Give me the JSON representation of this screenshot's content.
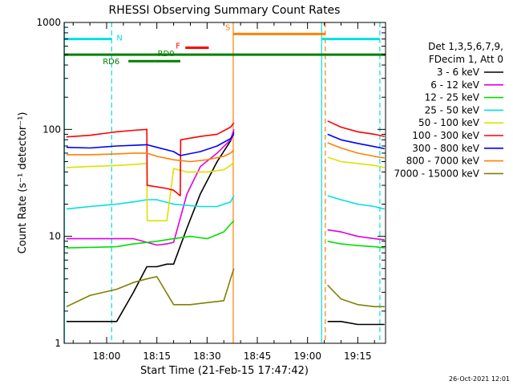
{
  "chart_data": {
    "type": "line",
    "title": "RHESSI Observing Summary Count Rates",
    "xlabel": "Start Time (21-Feb-15 17:47:42)",
    "ylabel": "Count Rate (s⁻¹ detector⁻¹)",
    "yscale": "log",
    "ylim": [
      1,
      1000
    ],
    "xlim_minutes": [
      -12.7,
      83.3
    ],
    "x_ticks": [
      {
        "label": "18:00",
        "min": 0
      },
      {
        "label": "18:15",
        "min": 15
      },
      {
        "label": "18:30",
        "min": 30
      },
      {
        "label": "18:45",
        "min": 45
      },
      {
        "label": "19:00",
        "min": 60
      },
      {
        "label": "19:15",
        "min": 75
      }
    ],
    "y_ticks": [
      {
        "label": "1",
        "value": 1
      },
      {
        "label": "10",
        "value": 10
      },
      {
        "label": "100",
        "value": 100
      },
      {
        "label": "1000",
        "value": 1000
      }
    ],
    "legend_title": [
      "Det 1,3,5,6,7,9,",
      "FDecim 1, Att 0"
    ],
    "legend_position": "right",
    "series": [
      {
        "name": "3 - 6 keV",
        "color": "#000000",
        "x": [
          -12,
          -5,
          3,
          8,
          12,
          15,
          18,
          20,
          24,
          28,
          33,
          37,
          38,
          63,
          66,
          70,
          75,
          80,
          83
        ],
        "y": [
          1.6,
          1.6,
          1.6,
          3.0,
          5.2,
          5.2,
          5.5,
          5.5,
          12,
          25,
          50,
          78,
          95,
          0,
          1.6,
          1.6,
          1.5,
          1.5,
          1.5
        ]
      },
      {
        "name": "6 - 12 keV",
        "color": "#e000e0",
        "x": [
          -12,
          3,
          8,
          15,
          18,
          20,
          24,
          28,
          33,
          37,
          38,
          63,
          66,
          70,
          75,
          80,
          83
        ],
        "y": [
          9.5,
          9.5,
          9.5,
          8.3,
          8.5,
          8.8,
          25,
          45,
          60,
          80,
          100,
          0,
          11.5,
          11,
          10,
          9.5,
          9.3
        ]
      },
      {
        "name": "12 - 25 keV",
        "color": "#00e000",
        "x": [
          -12,
          3,
          8,
          15,
          20,
          25,
          30,
          35,
          37,
          38,
          63,
          66,
          70,
          75,
          80,
          83
        ],
        "y": [
          7.8,
          8,
          8.5,
          9,
          9.5,
          10,
          9.5,
          11,
          13,
          14,
          0,
          9,
          8.5,
          8.2,
          8,
          7.8
        ]
      },
      {
        "name": "25 - 50 keV",
        "color": "#00e0e0",
        "x": [
          -12,
          -5,
          3,
          8,
          12,
          15,
          20,
          28,
          33,
          37,
          38,
          63,
          66,
          70,
          75,
          80,
          83
        ],
        "y": [
          18,
          19,
          20,
          21,
          22,
          22,
          20,
          19,
          19,
          21,
          24,
          0,
          24,
          22,
          20,
          19,
          18
        ]
      },
      {
        "name": "50 - 100 keV",
        "color": "#e0e000",
        "x": [
          -12,
          -5,
          3,
          8,
          12,
          12.1,
          18,
          20,
          24,
          30,
          35,
          37,
          38,
          63,
          66,
          70,
          75,
          80,
          83
        ],
        "y": [
          44,
          45,
          46,
          47,
          48,
          14,
          14,
          43,
          40,
          40,
          42,
          46,
          50,
          0,
          55,
          50,
          48,
          46,
          44
        ]
      },
      {
        "name": "100 - 300 keV",
        "color": "#ff0000",
        "x": [
          -12,
          -5,
          3,
          8,
          12,
          12.1,
          18,
          20,
          22,
          22.1,
          28,
          33,
          37,
          38,
          63,
          66,
          70,
          75,
          80,
          83
        ],
        "y": [
          85,
          88,
          95,
          98,
          100,
          30,
          28,
          27,
          24,
          80,
          86,
          90,
          105,
          115,
          0,
          120,
          105,
          95,
          90,
          86
        ]
      },
      {
        "name": "300 - 800 keV",
        "color": "#0000ff",
        "x": [
          -12,
          -5,
          3,
          8,
          12,
          15,
          20,
          22,
          22.1,
          28,
          33,
          37,
          38,
          63,
          66,
          70,
          75,
          80,
          83
        ],
        "y": [
          68,
          67,
          70,
          71,
          72,
          68,
          62,
          57,
          57,
          62,
          70,
          82,
          90,
          0,
          90,
          80,
          74,
          69,
          66
        ]
      },
      {
        "name": "800 - 7000 keV",
        "color": "#ff8000",
        "x": [
          -12,
          -5,
          3,
          8,
          12,
          15,
          20,
          25,
          30,
          35,
          37,
          38,
          63,
          66,
          70,
          75,
          80,
          83
        ],
        "y": [
          58,
          58,
          59,
          60,
          60,
          56,
          52,
          50,
          52,
          56,
          60,
          64,
          0,
          75,
          67,
          60,
          56,
          54
        ]
      },
      {
        "name": "7000 - 15000 keV",
        "color": "#808000",
        "x": [
          -12,
          -5,
          3,
          8,
          12,
          15,
          20,
          25,
          30,
          35,
          37,
          38,
          63,
          66,
          70,
          75,
          80,
          83
        ],
        "y": [
          2.2,
          2.8,
          3.2,
          3.7,
          4.0,
          4.2,
          2.3,
          2.3,
          2.4,
          2.5,
          4.0,
          5.0,
          0,
          3.5,
          2.6,
          2.3,
          2.2,
          2.2
        ]
      }
    ],
    "vertical_lines": [
      {
        "min": -12.6,
        "color": "#00e0e0",
        "style": "solid"
      },
      {
        "min": 1.5,
        "color": "#00e0e0",
        "style": "dashed"
      },
      {
        "min": 37.8,
        "color": "#ff8000",
        "style": "solid"
      },
      {
        "min": 64.2,
        "color": "#00e0e0",
        "style": "solid"
      },
      {
        "min": 65.3,
        "color": "#ff8000",
        "style": "dashed"
      },
      {
        "min": 81.6,
        "color": "#00e0e0",
        "style": "dashed"
      }
    ],
    "flag_bars": [
      {
        "label": "N",
        "color": "#00e0e0",
        "y": 700,
        "segments": [
          [
            -12.7,
            1.5
          ],
          [
            64.2,
            81.6
          ]
        ]
      },
      {
        "label": "S",
        "color": "#ff8000",
        "y": 780,
        "segments": [
          [
            37.8,
            65.3
          ]
        ]
      },
      {
        "label": "F",
        "color": "#ff0000",
        "y": 580,
        "segments": [
          [
            23.5,
            30.5
          ]
        ]
      },
      {
        "label": "",
        "color": "#008000",
        "y": 500,
        "segments": [
          [
            -12.7,
            83.3
          ]
        ]
      },
      {
        "label": "RD0",
        "color": "#008000",
        "y": 435,
        "segments": [
          [
            14.5,
            22
          ]
        ]
      },
      {
        "label": "RD6",
        "color": "#008000",
        "y": 435,
        "segments": [
          [
            6.5,
            14.5
          ]
        ]
      }
    ]
  },
  "footer_date": "26-Oct-2021 12:01"
}
